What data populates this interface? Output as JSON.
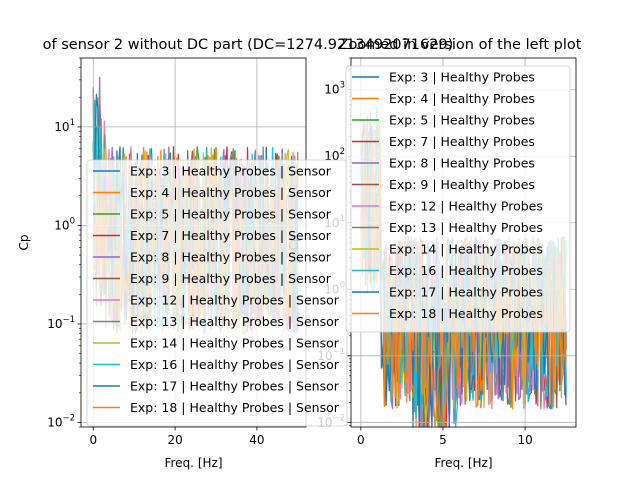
{
  "chart_data": [
    {
      "type": "line",
      "title": "of sensor 2 without DC part (DC=1274.9213492071629)",
      "xlabel": "Freq. [Hz]",
      "ylabel": "Cp",
      "xlim": [
        -3,
        52
      ],
      "ylim": [
        0.009,
        50
      ],
      "yscale": "log",
      "grid": true,
      "legend_position": "center-right",
      "xticks": [
        {
          "v": 0,
          "label": "0"
        },
        {
          "v": 20,
          "label": "20"
        },
        {
          "v": 40,
          "label": "40"
        }
      ],
      "yticks": [
        {
          "v": 0.01,
          "base": "10",
          "exp": "−2"
        },
        {
          "v": 0.1,
          "base": "10",
          "exp": "−1"
        },
        {
          "v": 1,
          "base": "10",
          "exp": "0"
        },
        {
          "v": 10,
          "base": "10",
          "exp": "1"
        }
      ],
      "series": [
        {
          "name": "Exp: 3 | Healthy Probes | Sensor",
          "color": "#1f77b4"
        },
        {
          "name": "Exp: 4 | Healthy Probes | Sensor",
          "color": "#ff7f0e"
        },
        {
          "name": "Exp: 5 | Healthy Probes | Sensor",
          "color": "#2ca02c"
        },
        {
          "name": "Exp: 7 | Healthy Probes | Sensor",
          "color": "#d62728"
        },
        {
          "name": "Exp: 8 | Healthy Probes | Sensor",
          "color": "#9467bd"
        },
        {
          "name": "Exp: 9 | Healthy Probes | Sensor",
          "color": "#8c564b"
        },
        {
          "name": "Exp: 12 | Healthy Probes | Sensor",
          "color": "#e377c2"
        },
        {
          "name": "Exp: 13 | Healthy Probes | Sensor",
          "color": "#7f7f7f"
        },
        {
          "name": "Exp: 14 | Healthy Probes | Sensor",
          "color": "#bcbd22"
        },
        {
          "name": "Exp: 16 | Healthy Probes | Sensor",
          "color": "#17becf"
        },
        {
          "name": "Exp: 17 | Healthy Probes | Sensor",
          "color": "#1f77b4"
        },
        {
          "name": "Exp: 18 | Healthy Probes | Sensor",
          "color": "#ff7f0e"
        }
      ]
    },
    {
      "type": "line",
      "title": "Zoomed in version of the left plot",
      "xlabel": "Freq. [Hz]",
      "ylabel": "Cp",
      "xlim": [
        -0.6,
        13.1
      ],
      "ylim": [
        0.0085,
        3000
      ],
      "yscale": "log",
      "grid": true,
      "legend_position": "upper-right",
      "xticks": [
        {
          "v": 0,
          "label": "0"
        },
        {
          "v": 5,
          "label": "5"
        },
        {
          "v": 10,
          "label": "10"
        }
      ],
      "yticks": [
        {
          "v": 0.01,
          "base": "10",
          "exp": "−2"
        },
        {
          "v": 0.1,
          "base": "10",
          "exp": "−1"
        },
        {
          "v": 1,
          "base": "10",
          "exp": "0"
        },
        {
          "v": 10,
          "base": "10",
          "exp": "1"
        },
        {
          "v": 100,
          "base": "10",
          "exp": "2"
        },
        {
          "v": 1000,
          "base": "10",
          "exp": "3"
        }
      ],
      "series": [
        {
          "name": "Exp: 3 | Healthy Probes",
          "color": "#1f77b4"
        },
        {
          "name": "Exp: 4 | Healthy Probes",
          "color": "#ff7f0e"
        },
        {
          "name": "Exp: 5 | Healthy Probes",
          "color": "#2ca02c"
        },
        {
          "name": "Exp: 7 | Healthy Probes",
          "color": "#d62728"
        },
        {
          "name": "Exp: 8 | Healthy Probes",
          "color": "#9467bd"
        },
        {
          "name": "Exp: 9 | Healthy Probes",
          "color": "#8c564b"
        },
        {
          "name": "Exp: 12 | Healthy Probes",
          "color": "#e377c2"
        },
        {
          "name": "Exp: 13 | Healthy Probes",
          "color": "#7f7f7f"
        },
        {
          "name": "Exp: 14 | Healthy Probes",
          "color": "#bcbd22"
        },
        {
          "name": "Exp: 16 | Healthy Probes",
          "color": "#17becf"
        },
        {
          "name": "Exp: 17 | Healthy Probes",
          "color": "#1f77b4"
        },
        {
          "name": "Exp: 18 | Healthy Probes",
          "color": "#ff7f0e"
        }
      ]
    }
  ]
}
